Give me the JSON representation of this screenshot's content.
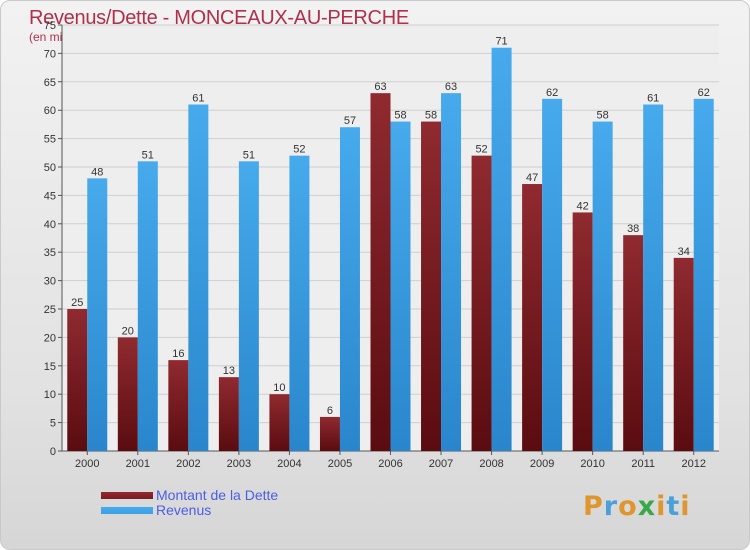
{
  "colors": {
    "title": "#b0304a",
    "dette": "#7a1a20",
    "revenus": "#3ba0e4",
    "legend_text": "#4a5ee6"
  },
  "chart_data": {
    "type": "bar",
    "title": "Revenus/Dette - MONCEAUX-AU-PERCHE",
    "subtitle": "(en milliers d'€)",
    "categories": [
      "2000",
      "2001",
      "2002",
      "2003",
      "2004",
      "2005",
      "2006",
      "2007",
      "2008",
      "2009",
      "2010",
      "2011",
      "2012"
    ],
    "series": [
      {
        "name": "Montant de la Dette",
        "values": [
          25,
          20,
          16,
          13,
          10,
          6,
          63,
          58,
          52,
          47,
          42,
          38,
          34
        ]
      },
      {
        "name": "Revenus",
        "values": [
          48,
          51,
          61,
          51,
          52,
          57,
          58,
          63,
          71,
          62,
          58,
          61,
          62
        ]
      }
    ],
    "ylim": [
      0,
      75
    ],
    "yticks": [
      0,
      5,
      10,
      15,
      20,
      25,
      30,
      35,
      40,
      45,
      50,
      55,
      60,
      65,
      70,
      75
    ],
    "grid": true,
    "data_labels": true,
    "legend_position": "bottom-left"
  },
  "logo": {
    "text": "Proxiti",
    "icon": "proxiti-logo"
  }
}
